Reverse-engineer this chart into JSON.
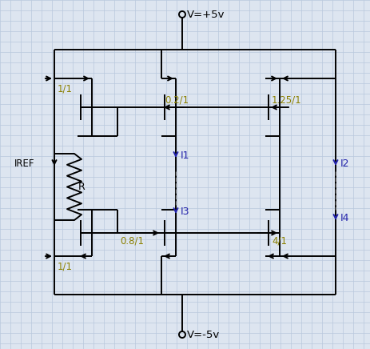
{
  "bg_color": "#dde5f0",
  "grid_color": "#b8c8dd",
  "line_color": "#000000",
  "ratio_color": "#8B8000",
  "current_color": "#2222aa",
  "vdd_label": "V=+5v",
  "vss_label": "V=-5v",
  "iref_label": "IREF",
  "r_label": "R",
  "ratio_top_left": "1/1",
  "ratio_top_mid": "0.2/1",
  "ratio_top_right": "1.25/1",
  "ratio_bot_left": "1/1",
  "ratio_bot_mid": "0.8/1",
  "ratio_bot_right": "4/1",
  "I1_label": "I1",
  "I2_label": "I2",
  "I3_label": "I3",
  "I4_label": "I4",
  "figw": 4.63,
  "figh": 4.36,
  "dpi": 100
}
